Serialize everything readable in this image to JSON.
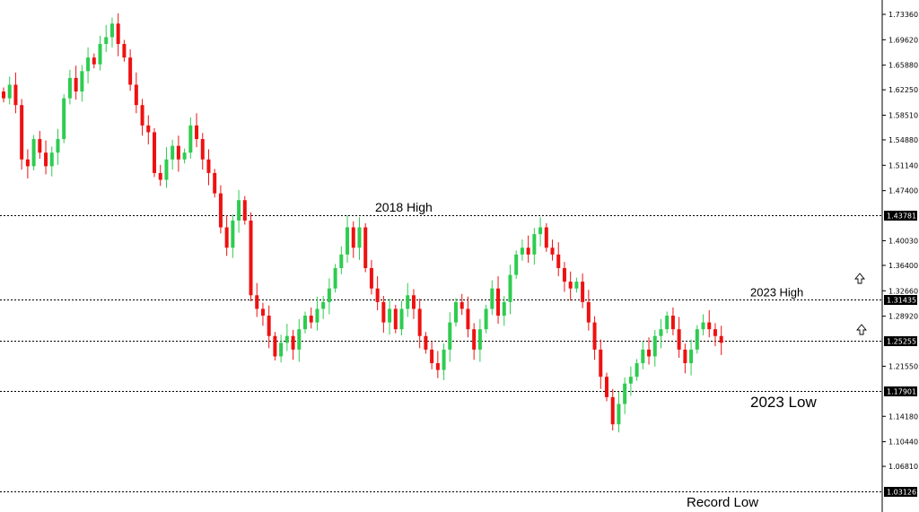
{
  "chart_data": {
    "type": "candlestick",
    "title": "",
    "xlabel": "",
    "ylabel": "",
    "ylim": [
      1.03,
      1.745
    ],
    "y_ticks": [
      "1.73360",
      "1.69620",
      "1.65880",
      "1.62250",
      "1.58510",
      "1.54880",
      "1.51140",
      "1.47400",
      "1.40030",
      "1.36400",
      "1.32660",
      "1.28920",
      "1.21550",
      "1.14180",
      "1.10440",
      "1.06810"
    ],
    "levels": [
      {
        "value": 1.43781,
        "label": "1.43781"
      },
      {
        "value": 1.31435,
        "label": "1.31435"
      },
      {
        "value": 1.25255,
        "label": "1.25255"
      },
      {
        "value": 1.17901,
        "label": "1.17901"
      },
      {
        "value": 1.03126,
        "label": "1.03126"
      }
    ],
    "annotations": [
      {
        "text": "2018 High",
        "value": 1.43781
      },
      {
        "text": "2023 High",
        "value": 1.31435
      },
      {
        "text": "2023 Low",
        "value": 1.17901
      },
      {
        "text": "Record Low",
        "value": 1.03126
      }
    ],
    "colors": {
      "up": "#2ecc50",
      "down": "#ee1111",
      "wick_up": "#2ecc50",
      "wick_down": "#ee1111",
      "level_line": "#000000",
      "label_bg": "#000000"
    },
    "closes": [
      1.61,
      1.63,
      1.6,
      1.52,
      1.51,
      1.55,
      1.53,
      1.51,
      1.53,
      1.55,
      1.61,
      1.64,
      1.62,
      1.65,
      1.67,
      1.66,
      1.69,
      1.7,
      1.72,
      1.69,
      1.67,
      1.63,
      1.6,
      1.57,
      1.56,
      1.5,
      1.49,
      1.52,
      1.54,
      1.52,
      1.53,
      1.57,
      1.55,
      1.52,
      1.5,
      1.47,
      1.42,
      1.39,
      1.43,
      1.46,
      1.43,
      1.32,
      1.3,
      1.29,
      1.26,
      1.23,
      1.25,
      1.26,
      1.24,
      1.27,
      1.29,
      1.28,
      1.3,
      1.31,
      1.33,
      1.36,
      1.38,
      1.42,
      1.39,
      1.42,
      1.36,
      1.33,
      1.31,
      1.28,
      1.3,
      1.27,
      1.3,
      1.32,
      1.3,
      1.26,
      1.24,
      1.22,
      1.21,
      1.24,
      1.28,
      1.31,
      1.3,
      1.27,
      1.24,
      1.27,
      1.3,
      1.33,
      1.29,
      1.31,
      1.35,
      1.38,
      1.39,
      1.38,
      1.41,
      1.42,
      1.39,
      1.38,
      1.36,
      1.34,
      1.33,
      1.34,
      1.31,
      1.28,
      1.24,
      1.2,
      1.17,
      1.13,
      1.16,
      1.19,
      1.2,
      1.22,
      1.24,
      1.23,
      1.26,
      1.27,
      1.29,
      1.27,
      1.24,
      1.22,
      1.24,
      1.27,
      1.28,
      1.27,
      1.26,
      1.25
    ]
  }
}
